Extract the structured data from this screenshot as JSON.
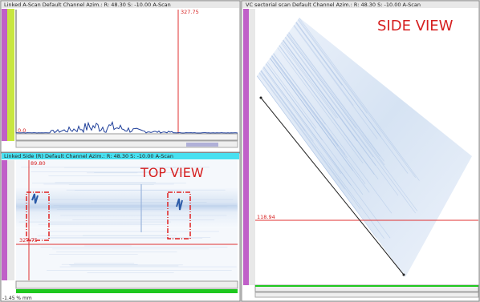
{
  "panels": {
    "a_scan": {
      "header": "Linked A-Scan Default Channel Azim.: R: 48.30 S: -10.00 A-Scan",
      "cursor_label": "327.75",
      "amplitude_label": "0.0"
    },
    "top_view": {
      "header": "Linked Side (R) Default Channel Azim.: R: 48.30 S: -10.00 A-Scan",
      "title": "TOP VIEW",
      "cursor_top": "89.80",
      "cursor_bottom": "327.75"
    },
    "side_view": {
      "header": "VC sectorial scan Default Channel Azim.: R: 48.30 S: -10.00 A-Scan",
      "title": "SIDE VIEW",
      "cursor_label": "118.94"
    },
    "status": "-1.45 % mm"
  }
}
